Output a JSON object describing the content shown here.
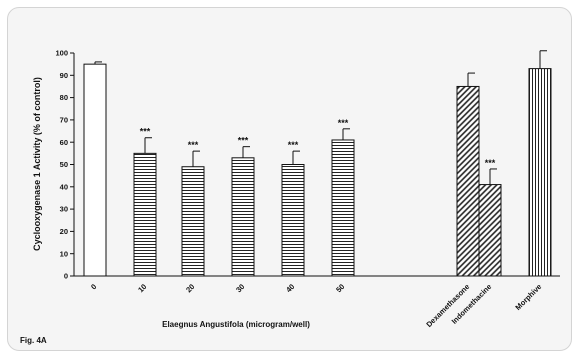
{
  "figure_label": "Fig. 4A",
  "chart_data": {
    "type": "bar",
    "ylabel": "Cyclooxygenase 1 Activity (% of control)",
    "xlabel": "Elaegnus Angustifola (microgram/well)",
    "ylim": [
      0,
      100
    ],
    "yticks": [
      0,
      10,
      20,
      30,
      40,
      50,
      60,
      70,
      80,
      90,
      100
    ],
    "grid": false,
    "categories": [
      "0",
      "10",
      "20",
      "30",
      "40",
      "50",
      "Dexamethasone",
      "Indomethacine",
      "Morphive"
    ],
    "values": [
      95,
      55,
      49,
      53,
      50,
      61,
      85,
      41,
      93
    ],
    "errors": [
      1,
      7,
      7,
      5,
      6,
      5,
      6,
      7,
      8
    ],
    "significance": [
      "",
      "***",
      "***",
      "***",
      "***",
      "***",
      "",
      "***",
      ""
    ],
    "patterns": [
      "none",
      "horizontal",
      "horizontal",
      "horizontal",
      "horizontal",
      "horizontal",
      "diagonal",
      "diagonal",
      "vertical"
    ]
  }
}
